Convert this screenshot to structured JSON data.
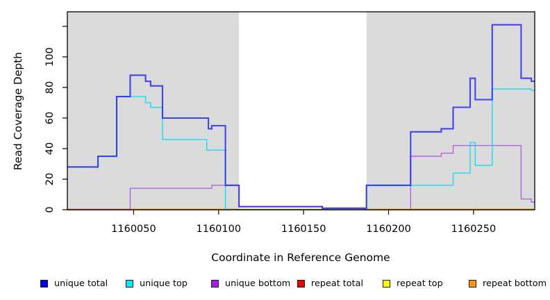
{
  "chart_data": {
    "type": "step-line",
    "title": "",
    "xlabel": "Coordinate in Reference Genome",
    "ylabel": "Read Coverage Depth",
    "xlim": [
      1160011,
      1160286
    ],
    "ylim": [
      0,
      129.5
    ],
    "grid": false,
    "x_ticks": [
      1160050,
      1160100,
      1160150,
      1160200,
      1160250
    ],
    "x_tick_labels": [
      "1160050",
      "1160100",
      "1160150",
      "1160200",
      "1160250"
    ],
    "y_ticks": [
      0,
      20,
      40,
      60,
      80,
      100,
      120
    ],
    "y_tick_labels": [
      "0",
      "20",
      "40",
      "60",
      "80",
      "100",
      ""
    ],
    "shaded_regions": [
      {
        "x0": 1160011,
        "x1": 1160112,
        "color": "#DBDBDB"
      },
      {
        "x0": 1160187,
        "x1": 1160286,
        "color": "#DBDBDB"
      }
    ],
    "series": [
      {
        "name": "unique total",
        "color": "#2222EE",
        "line_width": 2.1,
        "opacity": 0.82,
        "points": [
          [
            1160011,
            28
          ],
          [
            1160029,
            35
          ],
          [
            1160040,
            74
          ],
          [
            1160048,
            88
          ],
          [
            1160057,
            84
          ],
          [
            1160060,
            81
          ],
          [
            1160067,
            60
          ],
          [
            1160094,
            53
          ],
          [
            1160096,
            55
          ],
          [
            1160104,
            16
          ],
          [
            1160112,
            2
          ],
          [
            1160161,
            1
          ],
          [
            1160187,
            16
          ],
          [
            1160213,
            51
          ],
          [
            1160231,
            53
          ],
          [
            1160238,
            67
          ],
          [
            1160248,
            86
          ],
          [
            1160251,
            72
          ],
          [
            1160261,
            121
          ],
          [
            1160278,
            86
          ],
          [
            1160284,
            84
          ],
          [
            1160286,
            84
          ]
        ]
      },
      {
        "name": "unique top",
        "color": "#00DDEE",
        "line_width": 1.4,
        "opacity": 0.9,
        "points": [
          [
            1160011,
            28
          ],
          [
            1160029,
            35
          ],
          [
            1160040,
            74
          ],
          [
            1160057,
            70
          ],
          [
            1160060,
            67
          ],
          [
            1160067,
            46
          ],
          [
            1160093,
            39
          ],
          [
            1160104,
            0
          ],
          [
            1160187,
            16
          ],
          [
            1160238,
            24
          ],
          [
            1160248,
            44
          ],
          [
            1160251,
            29
          ],
          [
            1160261,
            79
          ],
          [
            1160284,
            78
          ],
          [
            1160286,
            78
          ]
        ]
      },
      {
        "name": "unique bottom",
        "color": "#AC5FDE",
        "line_width": 1.4,
        "opacity": 0.95,
        "points": [
          [
            1160011,
            0
          ],
          [
            1160048,
            14
          ],
          [
            1160096,
            16
          ],
          [
            1160112,
            2
          ],
          [
            1160161,
            1
          ],
          [
            1160187,
            0
          ],
          [
            1160213,
            35
          ],
          [
            1160231,
            37
          ],
          [
            1160238,
            42
          ],
          [
            1160278,
            7
          ],
          [
            1160284,
            5
          ],
          [
            1160286,
            5
          ]
        ]
      },
      {
        "name": "repeat total",
        "color": "#EE0000",
        "line_width": 1.5,
        "opacity": 1,
        "points": [
          [
            1160011,
            0
          ],
          [
            1160286,
            0
          ]
        ]
      },
      {
        "name": "repeat top",
        "color": "#FFFF00",
        "line_width": 1.5,
        "opacity": 1,
        "points": [
          [
            1160011,
            0
          ],
          [
            1160286,
            0
          ]
        ]
      },
      {
        "name": "repeat bottom",
        "color": "#FF9900",
        "line_width": 1.6,
        "opacity": 1,
        "points": [
          [
            1160011,
            0
          ],
          [
            1160286,
            0
          ]
        ]
      }
    ],
    "baseline_visible_segments": [
      {
        "color": "#E0639C",
        "x0": 1160011,
        "x1": 1160048,
        "value": 0
      },
      {
        "color": "#FF9900",
        "x0": 1160048,
        "x1": 1160286,
        "value": 0
      }
    ],
    "legend": {
      "position": "bottom",
      "items": [
        {
          "label": "unique total",
          "color": "#0000EE"
        },
        {
          "label": "unique top",
          "color": "#00EEEE"
        },
        {
          "label": "unique bottom",
          "color": "#A020F0"
        },
        {
          "label": "repeat total",
          "color": "#EE0000"
        },
        {
          "label": "repeat top",
          "color": "#FFFF00"
        },
        {
          "label": "repeat bottom",
          "color": "#FF9900"
        }
      ]
    }
  }
}
